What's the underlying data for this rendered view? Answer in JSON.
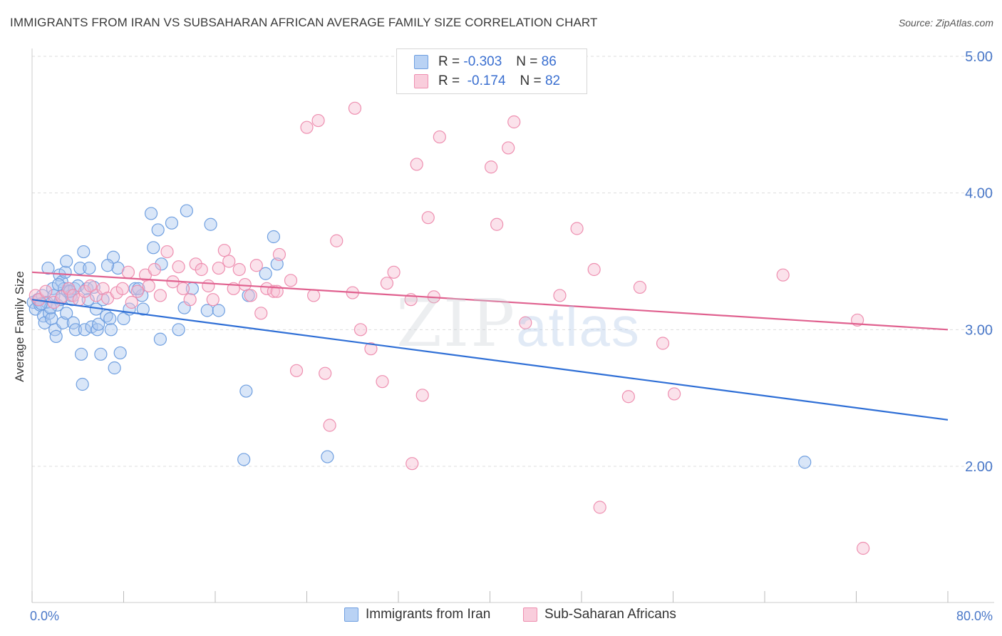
{
  "title": "IMMIGRANTS FROM IRAN VS SUBSAHARAN AFRICAN AVERAGE FAMILY SIZE CORRELATION CHART",
  "source": "Source: ZipAtlas.com",
  "watermark": {
    "zip": "ZIP",
    "atlas": "atlas"
  },
  "legend": {
    "iran": {
      "r_label": "R = ",
      "r_value": "-0.303",
      "n_label": "N = ",
      "n_value": "86"
    },
    "ssa": {
      "r_label": "R = ",
      "r_value": "-0.174",
      "n_label": "N = ",
      "n_value": "82"
    }
  },
  "colors": {
    "iran_fill": "#aac8f0",
    "iran_stroke": "#6f9fe0",
    "iran_line": "#2f6fd6",
    "ssa_fill": "#f7bfd2",
    "ssa_stroke": "#ee8fb0",
    "ssa_line": "#e0618f",
    "grid": "#dddddd",
    "axis_text": "#4a78c8"
  },
  "chart_data": {
    "type": "scatter",
    "title": "IMMIGRANTS FROM IRAN VS SUBSAHARAN AFRICAN AVERAGE FAMILY SIZE CORRELATION CHART",
    "xlabel": "",
    "ylabel": "Average Family Size",
    "xlim": [
      0,
      80
    ],
    "ylim": [
      1.0,
      5.15
    ],
    "x_tick_labels": {
      "min": "0.0%",
      "max": "80.0%"
    },
    "y_ticks": [
      2.0,
      3.0,
      4.0,
      5.0
    ],
    "y_tick_labels": [
      "2.00",
      "3.00",
      "4.00",
      "5.00"
    ],
    "grid": true,
    "legend_position": "top-center",
    "series": [
      {
        "name": "Immigrants from Iran",
        "trend": {
          "x0": 0,
          "y0": 3.22,
          "x1": 80,
          "y1": 2.34
        },
        "points": [
          [
            0.1,
            3.2
          ],
          [
            0.3,
            3.15
          ],
          [
            0.5,
            3.22
          ],
          [
            0.7,
            3.18
          ],
          [
            0.9,
            3.25
          ],
          [
            1.0,
            3.1
          ],
          [
            1.1,
            3.05
          ],
          [
            1.3,
            3.2
          ],
          [
            1.4,
            3.45
          ],
          [
            1.5,
            3.12
          ],
          [
            1.7,
            3.08
          ],
          [
            1.8,
            3.3
          ],
          [
            1.9,
            3.25
          ],
          [
            2.0,
            3.0
          ],
          [
            2.1,
            2.95
          ],
          [
            2.2,
            3.18
          ],
          [
            2.4,
            3.4
          ],
          [
            2.5,
            3.22
          ],
          [
            2.6,
            3.35
          ],
          [
            2.7,
            3.05
          ],
          [
            2.8,
            3.3
          ],
          [
            2.9,
            3.42
          ],
          [
            3.0,
            3.12
          ],
          [
            3.1,
            3.28
          ],
          [
            3.2,
            3.3
          ],
          [
            3.4,
            3.25
          ],
          [
            3.5,
            3.22
          ],
          [
            3.6,
            3.05
          ],
          [
            3.7,
            3.3
          ],
          [
            3.8,
            3.0
          ],
          [
            4.0,
            3.32
          ],
          [
            4.2,
            3.45
          ],
          [
            4.3,
            2.82
          ],
          [
            4.4,
            2.6
          ],
          [
            4.5,
            3.57
          ],
          [
            4.6,
            3.0
          ],
          [
            4.8,
            3.3
          ],
          [
            5.0,
            3.45
          ],
          [
            5.2,
            3.02
          ],
          [
            5.4,
            3.31
          ],
          [
            5.6,
            3.15
          ],
          [
            5.7,
            3.0
          ],
          [
            5.8,
            3.04
          ],
          [
            6.0,
            2.82
          ],
          [
            6.2,
            3.22
          ],
          [
            6.5,
            3.1
          ],
          [
            6.8,
            3.08
          ],
          [
            6.9,
            3.0
          ],
          [
            7.1,
            3.53
          ],
          [
            7.2,
            2.72
          ],
          [
            7.5,
            3.45
          ],
          [
            7.7,
            2.83
          ],
          [
            8.0,
            3.08
          ],
          [
            8.5,
            3.15
          ],
          [
            9.0,
            3.3
          ],
          [
            9.6,
            3.25
          ],
          [
            9.7,
            3.15
          ],
          [
            10.4,
            3.85
          ],
          [
            10.6,
            3.6
          ],
          [
            11.0,
            3.73
          ],
          [
            11.2,
            2.93
          ],
          [
            11.3,
            3.48
          ],
          [
            12.2,
            3.78
          ],
          [
            12.8,
            3.0
          ],
          [
            13.3,
            3.16
          ],
          [
            13.5,
            3.87
          ],
          [
            14.0,
            3.3
          ],
          [
            15.3,
            3.14
          ],
          [
            15.6,
            3.77
          ],
          [
            16.3,
            3.14
          ],
          [
            18.5,
            2.05
          ],
          [
            18.7,
            2.55
          ],
          [
            18.9,
            3.25
          ],
          [
            20.4,
            3.41
          ],
          [
            21.1,
            3.68
          ],
          [
            21.4,
            3.48
          ],
          [
            25.8,
            2.07
          ],
          [
            67.5,
            2.03
          ],
          [
            9.3,
            3.3
          ],
          [
            3.0,
            3.5
          ],
          [
            6.6,
            3.47
          ],
          [
            1.6,
            3.16
          ],
          [
            2.3,
            3.33
          ],
          [
            4.9,
            3.22
          ],
          [
            0.8,
            3.19
          ],
          [
            3.3,
            3.28
          ]
        ]
      },
      {
        "name": "Sub-Saharan Africans",
        "trend": {
          "x0": 0,
          "y0": 3.42,
          "x1": 80,
          "y1": 3.0
        },
        "points": [
          [
            0.3,
            3.25
          ],
          [
            0.6,
            3.22
          ],
          [
            1.2,
            3.28
          ],
          [
            1.9,
            3.2
          ],
          [
            2.6,
            3.24
          ],
          [
            3.2,
            3.3
          ],
          [
            3.6,
            3.25
          ],
          [
            4.1,
            3.22
          ],
          [
            4.6,
            3.28
          ],
          [
            5.1,
            3.32
          ],
          [
            5.6,
            3.25
          ],
          [
            6.2,
            3.3
          ],
          [
            6.6,
            3.23
          ],
          [
            7.4,
            3.27
          ],
          [
            7.9,
            3.3
          ],
          [
            8.4,
            3.42
          ],
          [
            8.7,
            3.2
          ],
          [
            9.2,
            3.28
          ],
          [
            9.9,
            3.4
          ],
          [
            10.2,
            3.32
          ],
          [
            10.7,
            3.44
          ],
          [
            11.2,
            3.25
          ],
          [
            11.8,
            3.57
          ],
          [
            12.3,
            3.35
          ],
          [
            12.8,
            3.46
          ],
          [
            13.2,
            3.3
          ],
          [
            13.8,
            3.22
          ],
          [
            14.3,
            3.48
          ],
          [
            14.8,
            3.44
          ],
          [
            15.4,
            3.32
          ],
          [
            15.8,
            3.22
          ],
          [
            16.3,
            3.45
          ],
          [
            16.8,
            3.58
          ],
          [
            17.2,
            3.5
          ],
          [
            17.6,
            3.3
          ],
          [
            18.1,
            3.44
          ],
          [
            18.6,
            3.33
          ],
          [
            19.1,
            3.25
          ],
          [
            19.6,
            3.47
          ],
          [
            20.0,
            3.12
          ],
          [
            20.5,
            3.3
          ],
          [
            21.1,
            3.28
          ],
          [
            21.6,
            3.55
          ],
          [
            22.6,
            3.36
          ],
          [
            23.1,
            2.7
          ],
          [
            24.0,
            4.48
          ],
          [
            24.6,
            3.25
          ],
          [
            25.0,
            4.53
          ],
          [
            25.6,
            2.68
          ],
          [
            26.0,
            2.3
          ],
          [
            26.6,
            3.65
          ],
          [
            28.0,
            3.27
          ],
          [
            28.2,
            4.62
          ],
          [
            28.7,
            3.0
          ],
          [
            29.6,
            2.86
          ],
          [
            30.6,
            2.62
          ],
          [
            31.0,
            3.34
          ],
          [
            31.6,
            3.42
          ],
          [
            33.1,
            3.22
          ],
          [
            33.2,
            2.02
          ],
          [
            33.6,
            4.21
          ],
          [
            34.1,
            2.52
          ],
          [
            34.6,
            3.82
          ],
          [
            35.1,
            3.24
          ],
          [
            35.6,
            4.41
          ],
          [
            40.1,
            4.19
          ],
          [
            40.6,
            3.77
          ],
          [
            41.6,
            4.33
          ],
          [
            42.1,
            4.52
          ],
          [
            43.1,
            3.05
          ],
          [
            46.1,
            3.25
          ],
          [
            47.6,
            3.74
          ],
          [
            49.1,
            3.44
          ],
          [
            49.6,
            1.7
          ],
          [
            52.1,
            2.51
          ],
          [
            53.1,
            3.31
          ],
          [
            55.1,
            2.9
          ],
          [
            56.1,
            2.53
          ],
          [
            65.6,
            3.4
          ],
          [
            72.1,
            3.07
          ],
          [
            72.6,
            1.4
          ],
          [
            21.4,
            3.28
          ]
        ]
      }
    ]
  },
  "bottom_legend": {
    "iran": "Immigrants from Iran",
    "ssa": "Sub-Saharan Africans"
  }
}
